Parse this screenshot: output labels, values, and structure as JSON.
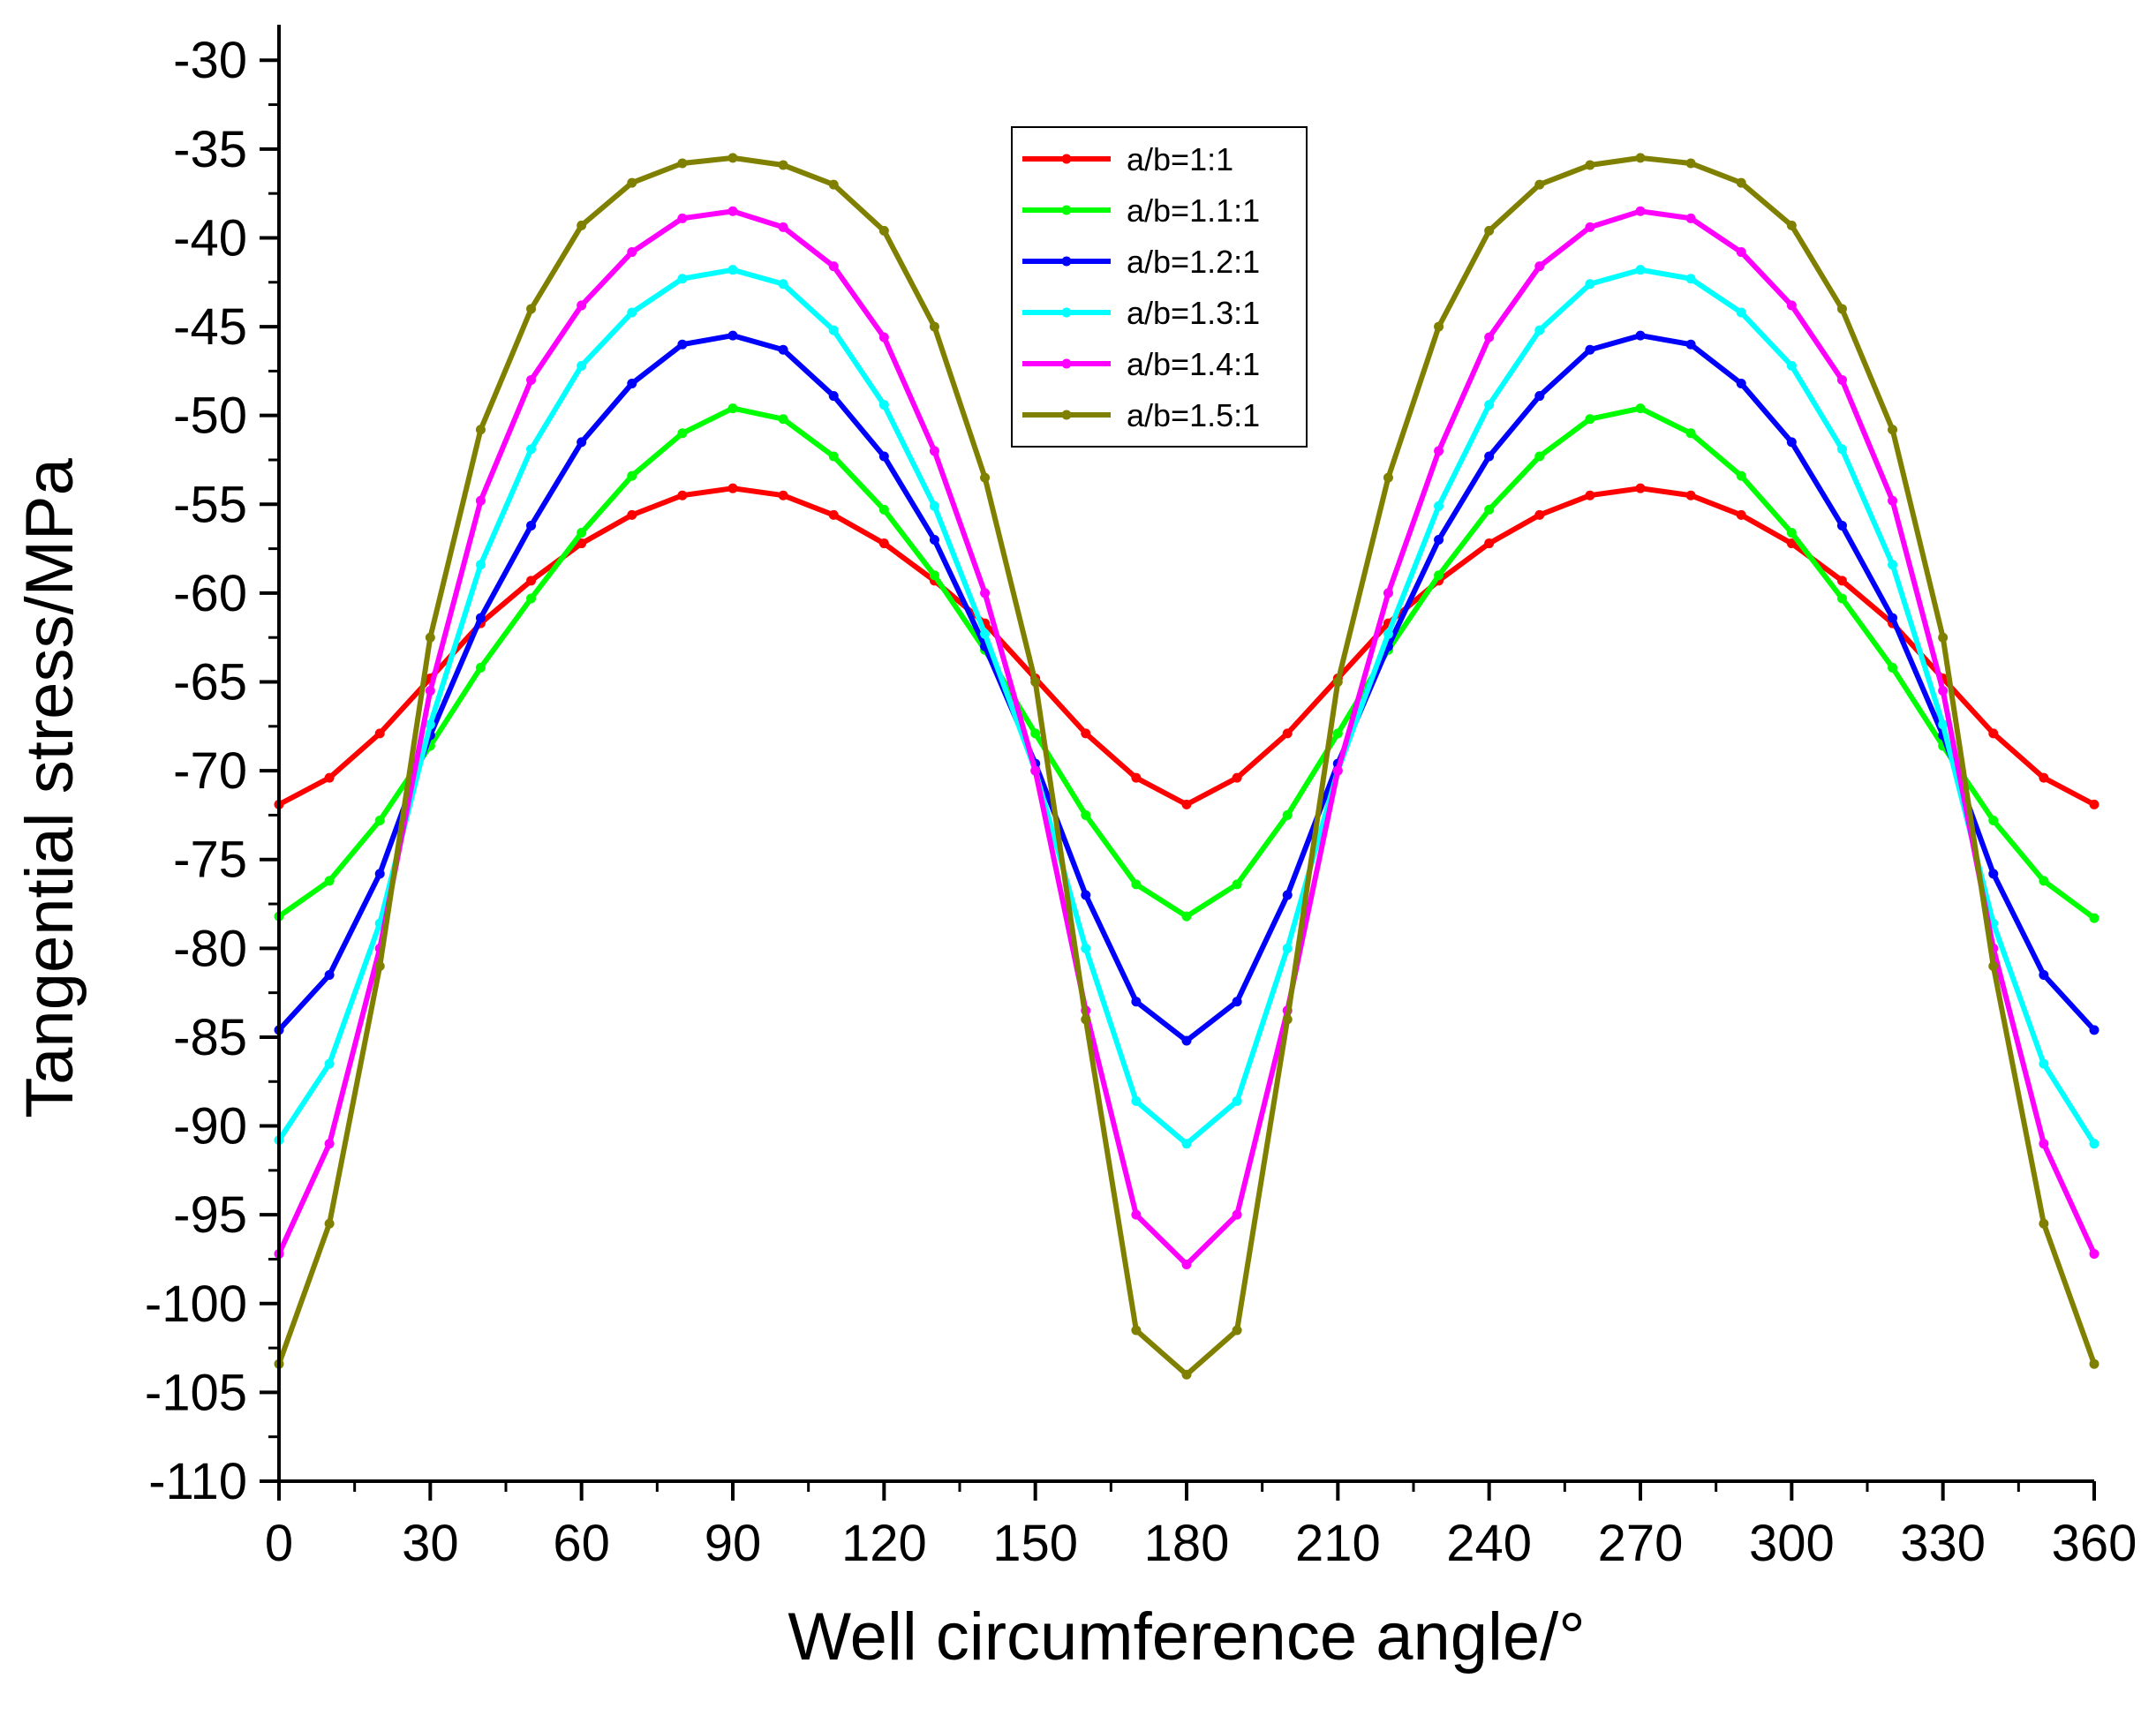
{
  "chart_data": {
    "type": "line",
    "title": "",
    "xlabel": "Well circumference angle/°",
    "ylabel": "Tangential stress/MPa",
    "xlim": [
      0,
      360
    ],
    "ylim": [
      -110,
      -28
    ],
    "x_ticks": [
      0,
      30,
      60,
      90,
      120,
      150,
      180,
      210,
      240,
      270,
      300,
      330,
      360
    ],
    "x_tick_labels": [
      "0",
      "30",
      "60",
      "90",
      "120",
      "150",
      "180",
      "210",
      "240",
      "270",
      "300",
      "330",
      "360"
    ],
    "y_ticks": [
      -30,
      -35,
      -40,
      -45,
      -50,
      -55,
      -60,
      -65,
      -70,
      -75,
      -80,
      -85,
      -90,
      -95,
      -100,
      -105,
      -110
    ],
    "y_tick_labels": [
      "-30",
      "-35",
      "-40",
      "-45",
      "-50",
      "-55",
      "-60",
      "-65",
      "-70",
      "-75",
      "-80",
      "-85",
      "-90",
      "-95",
      "-100",
      "-105",
      "-110"
    ],
    "legend_position": "top-center",
    "x": [
      0,
      10,
      20,
      30,
      40,
      50,
      60,
      70,
      80,
      90,
      100,
      110,
      120,
      130,
      140,
      150,
      160,
      170,
      180,
      190,
      200,
      210,
      220,
      230,
      240,
      250,
      260,
      270,
      280,
      290,
      300,
      310,
      320,
      330,
      340,
      350,
      360
    ],
    "series": [
      {
        "name": "a/b=1:1",
        "color": "#ff0000",
        "values": [
          -71.9,
          -70.4,
          -67.9,
          -64.8,
          -61.7,
          -59.3,
          -57.2,
          -55.6,
          -54.5,
          -54.1,
          -54.5,
          -55.6,
          -57.2,
          -59.3,
          -61.7,
          -64.8,
          -67.9,
          -70.4,
          -71.9,
          -70.4,
          -67.9,
          -64.8,
          -61.7,
          -59.3,
          -57.2,
          -55.6,
          -54.5,
          -54.1,
          -54.5,
          -55.6,
          -57.2,
          -59.3,
          -61.7,
          -64.8,
          -67.9,
          -70.4,
          -71.9
        ]
      },
      {
        "name": "a/b=1.1:1",
        "color": "#00ff00",
        "values": [
          -78.2,
          -76.2,
          -72.8,
          -68.6,
          -64.2,
          -60.3,
          -56.6,
          -53.4,
          -51.0,
          -49.6,
          -50.2,
          -52.3,
          -55.3,
          -59.0,
          -63.2,
          -67.9,
          -72.5,
          -76.4,
          -78.2,
          -76.4,
          -72.5,
          -67.9,
          -63.2,
          -59.0,
          -55.3,
          -52.3,
          -50.2,
          -49.6,
          -51.0,
          -53.4,
          -56.6,
          -60.3,
          -64.2,
          -68.6,
          -72.8,
          -76.2,
          -78.3
        ]
      },
      {
        "name": "a/b=1.2:1",
        "color": "#0000ff",
        "values": [
          -84.6,
          -81.5,
          -75.8,
          -68.0,
          -61.4,
          -56.2,
          -51.5,
          -48.2,
          -46.0,
          -45.5,
          -46.3,
          -48.9,
          -52.3,
          -57.0,
          -63.0,
          -69.6,
          -77.0,
          -83.0,
          -85.2,
          -83.0,
          -77.0,
          -69.6,
          -63.0,
          -57.0,
          -52.3,
          -48.9,
          -46.3,
          -45.5,
          -46.0,
          -48.2,
          -51.5,
          -56.2,
          -61.4,
          -68.0,
          -75.8,
          -81.5,
          -84.6
        ]
      },
      {
        "name": "a/b=1.3:1",
        "color": "#00ffff",
        "values": [
          -90.8,
          -86.5,
          -78.6,
          -67.4,
          -58.4,
          -51.9,
          -47.2,
          -44.2,
          -42.3,
          -41.8,
          -42.6,
          -45.2,
          -49.4,
          -55.1,
          -62.3,
          -70.0,
          -80.0,
          -88.6,
          -91.0,
          -88.6,
          -80.0,
          -70.0,
          -62.3,
          -55.1,
          -49.4,
          -45.2,
          -42.6,
          -41.8,
          -42.3,
          -44.2,
          -47.2,
          -51.9,
          -58.4,
          -67.4,
          -78.6,
          -86.5,
          -91.0
        ]
      },
      {
        "name": "a/b=1.4:1",
        "color": "#ff00ff",
        "values": [
          -97.2,
          -91.0,
          -80.0,
          -65.5,
          -54.8,
          -48.0,
          -43.8,
          -40.8,
          -38.9,
          -38.5,
          -39.4,
          -41.6,
          -45.6,
          -52.0,
          -60.0,
          -70.0,
          -83.5,
          -95.0,
          -97.8,
          -95.0,
          -83.5,
          -70.0,
          -60.0,
          -52.0,
          -45.6,
          -41.6,
          -39.4,
          -38.5,
          -38.9,
          -40.8,
          -43.8,
          -48.0,
          -54.8,
          -65.5,
          -80.0,
          -91.0,
          -97.2
        ]
      },
      {
        "name": "a/b=1.5:1",
        "color": "#808000",
        "values": [
          -103.4,
          -95.5,
          -81.0,
          -62.5,
          -50.8,
          -44.0,
          -39.3,
          -36.9,
          -35.8,
          -35.5,
          -35.9,
          -37.0,
          -39.6,
          -45.0,
          -53.5,
          -65.0,
          -84.0,
          -101.5,
          -104.0,
          -101.5,
          -84.0,
          -65.0,
          -53.5,
          -45.0,
          -39.6,
          -37.0,
          -35.9,
          -35.5,
          -35.8,
          -36.9,
          -39.3,
          -44.0,
          -50.8,
          -62.5,
          -81.0,
          -95.5,
          -103.4
        ]
      }
    ]
  }
}
